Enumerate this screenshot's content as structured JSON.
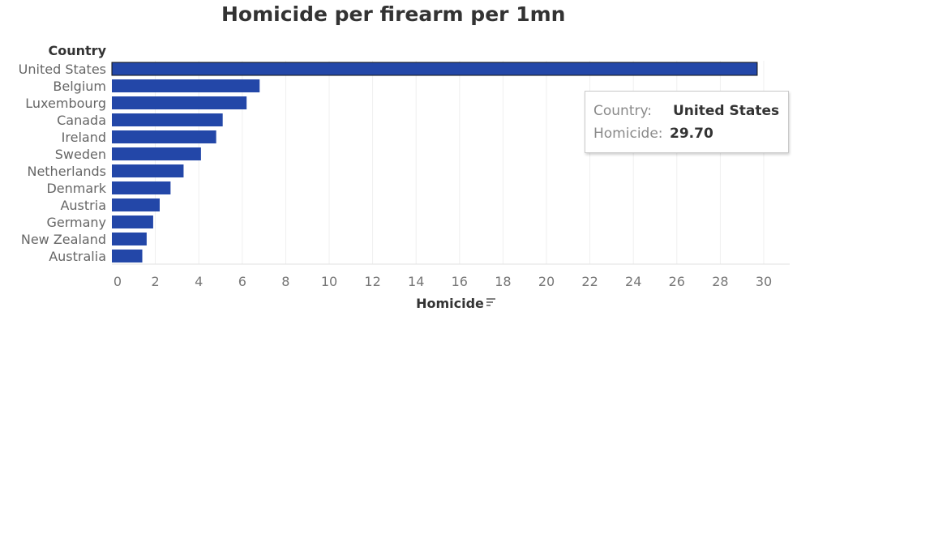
{
  "chart_data": {
    "type": "bar",
    "orientation": "horizontal",
    "title": "Homicide per firearm per 1mn",
    "ylabel": "Country",
    "xlabel": "Homicide",
    "categories": [
      "United States",
      "Belgium",
      "Luxembourg",
      "Canada",
      "Ireland",
      "Sweden",
      "Netherlands",
      "Denmark",
      "Austria",
      "Germany",
      "New Zealand",
      "Australia"
    ],
    "values": [
      29.7,
      6.8,
      6.2,
      5.1,
      4.8,
      4.1,
      3.3,
      2.7,
      2.2,
      1.9,
      1.6,
      1.4
    ],
    "xlim": [
      0,
      31
    ],
    "xticks": [
      0,
      2,
      4,
      6,
      8,
      10,
      12,
      14,
      16,
      18,
      20,
      22,
      24,
      26,
      28,
      30
    ],
    "grid": true,
    "bar_color": "#2347a8",
    "highlighted_category": "United States"
  },
  "tooltip": {
    "country_label": "Country:",
    "country_value": "United States",
    "homicide_label": "Homicide:",
    "homicide_value": "29.70"
  },
  "sort_icon": "sort-descending-icon"
}
